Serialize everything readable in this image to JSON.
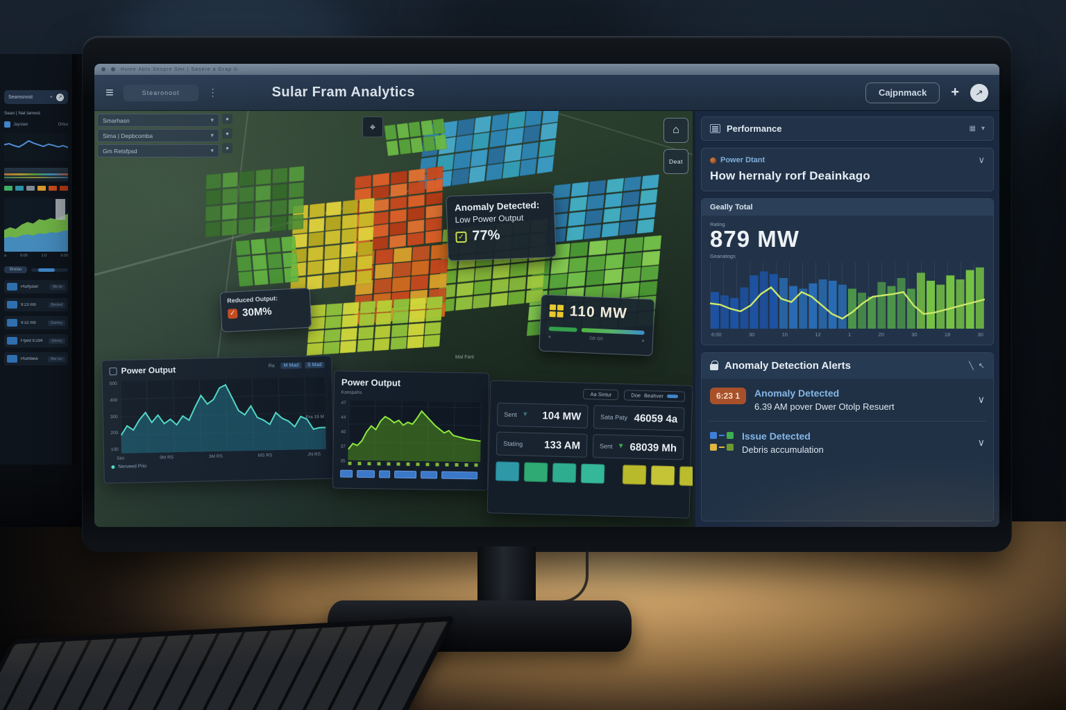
{
  "icons": {
    "hamburger": "≡",
    "dots": "⋮",
    "plus": "+",
    "compass": "↗",
    "caret": "▾",
    "chevron": "∨",
    "house": "⌂",
    "target": "⌖",
    "slash": "╲",
    "cursor": "↖",
    "check": "✓",
    "dot": "●",
    "grid": "▦",
    "tri_down": "▼",
    "circle_arrow": "↗"
  },
  "left_monitor": {
    "top_pill": "Seamsnost",
    "header_row": "Sean  |  Nat tamest",
    "checkbox_label": "Jayslaw",
    "checkbox_label2": "Orlsu",
    "x_row": [
      "a",
      "9:00",
      "1:0",
      "9:00"
    ],
    "toggle_label": "Brelao",
    "legend_chips": [
      "#3fae62",
      "#2e8fa8",
      "#808a94",
      "#d89a2e",
      "#c84b1d",
      "#b53a15"
    ],
    "rows": [
      {
        "label": "Plurfjuser",
        "value": "Bb tw"
      },
      {
        "label": "9:23 mb",
        "value": "Berted"
      },
      {
        "label": "9:32 mb",
        "value": "Gariwy"
      },
      {
        "label": "Flyed 9:294",
        "value": "Gdrwy"
      },
      {
        "label": "Plumbew",
        "value": "Ber wv"
      }
    ]
  },
  "screen": {
    "browser_bar": {
      "items": "Home    Abts    Sespre    Smt  |  Sasere a Grap  ©"
    },
    "header": {
      "nav_pill": "Stearonoot",
      "title": "Sular Fram Analytics",
      "account_button": "Cajpnmack"
    },
    "map": {
      "dropdowns": [
        {
          "label": "Smarhasn"
        },
        {
          "label": "Sima | Depbcomba"
        },
        {
          "label": "Gm  Retsfpsd"
        }
      ],
      "detail_button": "Deat",
      "map_label": "Mal Fanl",
      "tooltips": {
        "anomaly": {
          "title": "Anomaly Detected:",
          "subtitle": "Low Power Output",
          "value": "77%"
        },
        "reduced": {
          "title": "Reduced Output:",
          "value": "30M%"
        },
        "power": {
          "value": "110 MW",
          "ticks": [
            "a",
            "GB QG",
            "a"
          ]
        }
      }
    },
    "bottom_panels": {
      "left_chart": {
        "title": "Power Output",
        "chips": [
          "Ra",
          "M Mad",
          "S Mad"
        ],
        "legend": "Nerveed Prio",
        "note": "Fra 19 M"
      },
      "center_chart": {
        "title": "Power Output",
        "legend": "Kanspafro",
        "rect_widths": [
          18,
          26,
          16,
          32,
          24,
          52
        ]
      },
      "stats": {
        "pill1": "Aa Sintur",
        "pill2": "Doe",
        "pill3": "Beahver",
        "rows_left": [
          {
            "label": "Sent",
            "value": "104 MW"
          },
          {
            "label": "Stating",
            "value": "133 AM"
          }
        ],
        "rows_right": [
          {
            "label": "Sata Paty",
            "value": "46059 4a"
          },
          {
            "label": "Sent",
            "value": "68039 Mh"
          }
        ],
        "left_chips": [
          "#2e98a8",
          "#2faa74",
          "#2fae8f",
          "#35b89a"
        ],
        "right_chips": [
          "#b8ba2c",
          "#c4c436",
          "#babc2e",
          "#3a4656"
        ]
      }
    },
    "right_panel": {
      "performance_title": "Performance",
      "power_card": {
        "eyebrow": "Power Dtant",
        "title": "How hernaly rorf Deainkago"
      },
      "chart_card": {
        "tab": "Geally Total",
        "eyebrow": "Rating",
        "value": "879 MW",
        "sub": "Geanatogs"
      },
      "alerts": {
        "title": "Anomaly Detection Alerts",
        "items": [
          {
            "badge": "6:23 1",
            "title": "Anomaly Detected",
            "subtitle": "6.39 AM pover Dwer Otolp Resuert"
          },
          {
            "title": "Issue Detected",
            "subtitle": "Debris accumulation"
          }
        ],
        "item2_icon_colors": [
          [
            "#3f7fd9",
            "#3fae52"
          ],
          [
            "#e0b83f",
            "#6a9a2f"
          ]
        ]
      }
    }
  },
  "chart_data": [
    {
      "id": "daily_total",
      "type": "bar_line",
      "title": "Geally Total",
      "value_label": "879 MW",
      "ylim": [
        0,
        100
      ],
      "series": [
        {
          "name": "output_bars",
          "values": [
            55,
            50,
            46,
            62,
            80,
            86,
            82,
            76,
            64,
            60,
            68,
            74,
            72,
            66,
            60,
            54,
            48,
            70,
            64,
            76,
            60,
            84,
            72,
            66,
            80,
            74,
            88,
            92
          ]
        },
        {
          "name": "trend_line",
          "values": [
            38,
            36,
            30,
            26,
            35,
            52,
            62,
            45,
            40,
            55,
            48,
            35,
            22,
            15,
            25,
            38,
            48,
            50,
            52,
            55,
            35,
            22,
            24,
            28,
            32,
            36,
            40,
            44
          ]
        }
      ],
      "x_ticks": [
        "6:00",
        "30",
        "10",
        "12",
        "1",
        "20",
        "30",
        "18",
        "30"
      ],
      "colors": {
        "bars": [
          "#1d54a8",
          "#2a6fb8",
          "#4f9a4a",
          "#7ac943"
        ],
        "line": "#cde86a"
      }
    },
    {
      "id": "power_output_left",
      "type": "area",
      "ylim": [
        0,
        100
      ],
      "values": [
        25,
        38,
        32,
        46,
        56,
        42,
        52,
        40,
        46,
        38,
        50,
        44,
        62,
        78,
        66,
        72,
        88,
        92,
        74,
        56,
        50,
        62,
        46,
        42,
        36,
        52,
        44,
        40,
        32,
        46,
        42,
        28,
        30,
        30
      ],
      "y_ticks": [
        "500",
        "400",
        "300",
        "200",
        "100"
      ],
      "x_ticks": [
        "Sim",
        "9M RS",
        "3M RS",
        "MS RS",
        "JN RS"
      ],
      "colors": {
        "line": "#4fd8c4",
        "fill": "#1f6f86"
      }
    },
    {
      "id": "power_output_center",
      "type": "area",
      "ylim": [
        0,
        100
      ],
      "values": [
        18,
        28,
        25,
        33,
        48,
        58,
        52,
        66,
        74,
        70,
        64,
        68,
        60,
        65,
        62,
        72,
        84,
        76,
        68,
        60,
        54,
        48,
        52,
        44,
        42,
        40,
        38,
        37,
        36,
        35
      ],
      "y_ticks": [
        "47",
        "44",
        "40",
        "37",
        "35"
      ],
      "colors": {
        "line": "#8ee83e",
        "fill": "#4f8f1f"
      }
    },
    {
      "id": "monitor_line",
      "type": "line",
      "ylim": [
        0,
        100
      ],
      "values": [
        58,
        62,
        55,
        50,
        60,
        72,
        64,
        58,
        52,
        60,
        56,
        50,
        55,
        48
      ],
      "colors": {
        "line": "#4f8fd8"
      }
    },
    {
      "id": "monitor_stack",
      "type": "stack",
      "ylim": [
        0,
        100
      ],
      "series": [
        {
          "name": "green",
          "color": "#7ac24a",
          "values": [
            40,
            45,
            42,
            50,
            55,
            52,
            60,
            58,
            62,
            60,
            66,
            70
          ]
        },
        {
          "name": "blue",
          "color": "#3f86c8",
          "values": [
            25,
            28,
            26,
            30,
            32,
            30,
            34,
            33,
            36,
            35,
            38,
            40
          ]
        }
      ]
    }
  ],
  "map_clusters": [
    {
      "id": "c1",
      "rows": 4,
      "cols": 8,
      "colors": [
        "#2f85b4",
        "#3c9cc6",
        "#2a6f9e",
        "#49aacb",
        "#2f85b4",
        "#35a0b8"
      ]
    },
    {
      "id": "c2",
      "rows": 4,
      "cols": 6,
      "colors": [
        "#2f7fae",
        "#3fa6c8",
        "#2a6f9e",
        "#44b0c4"
      ]
    },
    {
      "id": "c3",
      "rows": 6,
      "cols": 7,
      "colors": [
        "#5aa83c",
        "#74c24a",
        "#4c9a34",
        "#86cf52",
        "#63b03f"
      ]
    },
    {
      "id": "c4",
      "rows": 6,
      "cols": 6,
      "colors": [
        "#86b83a",
        "#a0c93f",
        "#6fae33",
        "#93c23d"
      ]
    },
    {
      "id": "c5",
      "rows": 6,
      "cols": 5,
      "colors": [
        "#c8481d",
        "#de5f26",
        "#b53a15",
        "#e07030"
      ]
    },
    {
      "id": "c6",
      "rows": 5,
      "cols": 5,
      "colors": [
        "#d2691e",
        "#c8481d",
        "#d8a02a",
        "#c05020"
      ]
    },
    {
      "id": "c7",
      "rows": 6,
      "cols": 5,
      "colors": [
        "#d4c22c",
        "#c9b825",
        "#e0d23a",
        "#baa81e"
      ]
    },
    {
      "id": "c8",
      "rows": 4,
      "cols": 8,
      "colors": [
        "#b8cf35",
        "#8fc23a",
        "#d0d83a",
        "#a2c838"
      ]
    },
    {
      "id": "c9",
      "rows": 4,
      "cols": 6,
      "colors": [
        "#3f7d2e",
        "#55a03a",
        "#336b26",
        "#478a30"
      ]
    },
    {
      "id": "c10",
      "rows": 3,
      "cols": 4,
      "colors": [
        "#4c9a34",
        "#63b83f"
      ]
    },
    {
      "id": "c11",
      "rows": 2,
      "cols": 5,
      "colors": [
        "#57a33a",
        "#6ab844"
      ]
    }
  ]
}
